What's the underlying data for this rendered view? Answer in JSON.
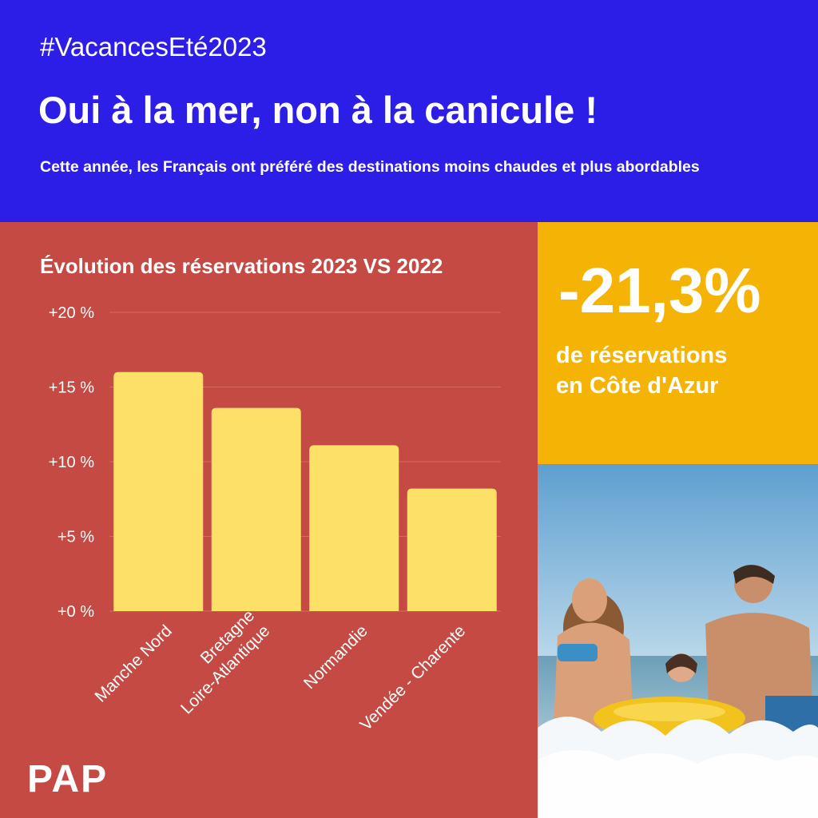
{
  "header": {
    "hashtag": "#VacancesEté2023",
    "title": "Oui à la mer, non à la canicule !",
    "subtitle": "Cette année, les Français ont préféré des destinations moins chaudes et plus abordables"
  },
  "stat": {
    "value": "-21,3%",
    "label_line1": "de réservations",
    "label_line2": "en Côte d'Azur"
  },
  "logo": "PAP",
  "colors": {
    "header_bg": "#2c1ee6",
    "chart_bg": "#c44a43",
    "stat_bg": "#f5b405",
    "bar": "#fde068"
  },
  "chart_data": {
    "type": "bar",
    "title": "Évolution des réservations 2023 VS 2022",
    "categories": [
      [
        "Manche Nord"
      ],
      [
        "Bretagne",
        "Loire-Atlantique"
      ],
      [
        "Normandie"
      ],
      [
        "Vendée - Charente"
      ]
    ],
    "values": [
      16,
      13.6,
      11.1,
      8.2
    ],
    "unit": "%",
    "ylim": [
      0,
      20
    ],
    "yticks": [
      {
        "value": 0,
        "label": "+0 %"
      },
      {
        "value": 5,
        "label": "+5 %"
      },
      {
        "value": 10,
        "label": "+10 %"
      },
      {
        "value": 15,
        "label": "+15 %"
      },
      {
        "value": 20,
        "label": "+20 %"
      }
    ],
    "grid": true,
    "legend": "none"
  }
}
